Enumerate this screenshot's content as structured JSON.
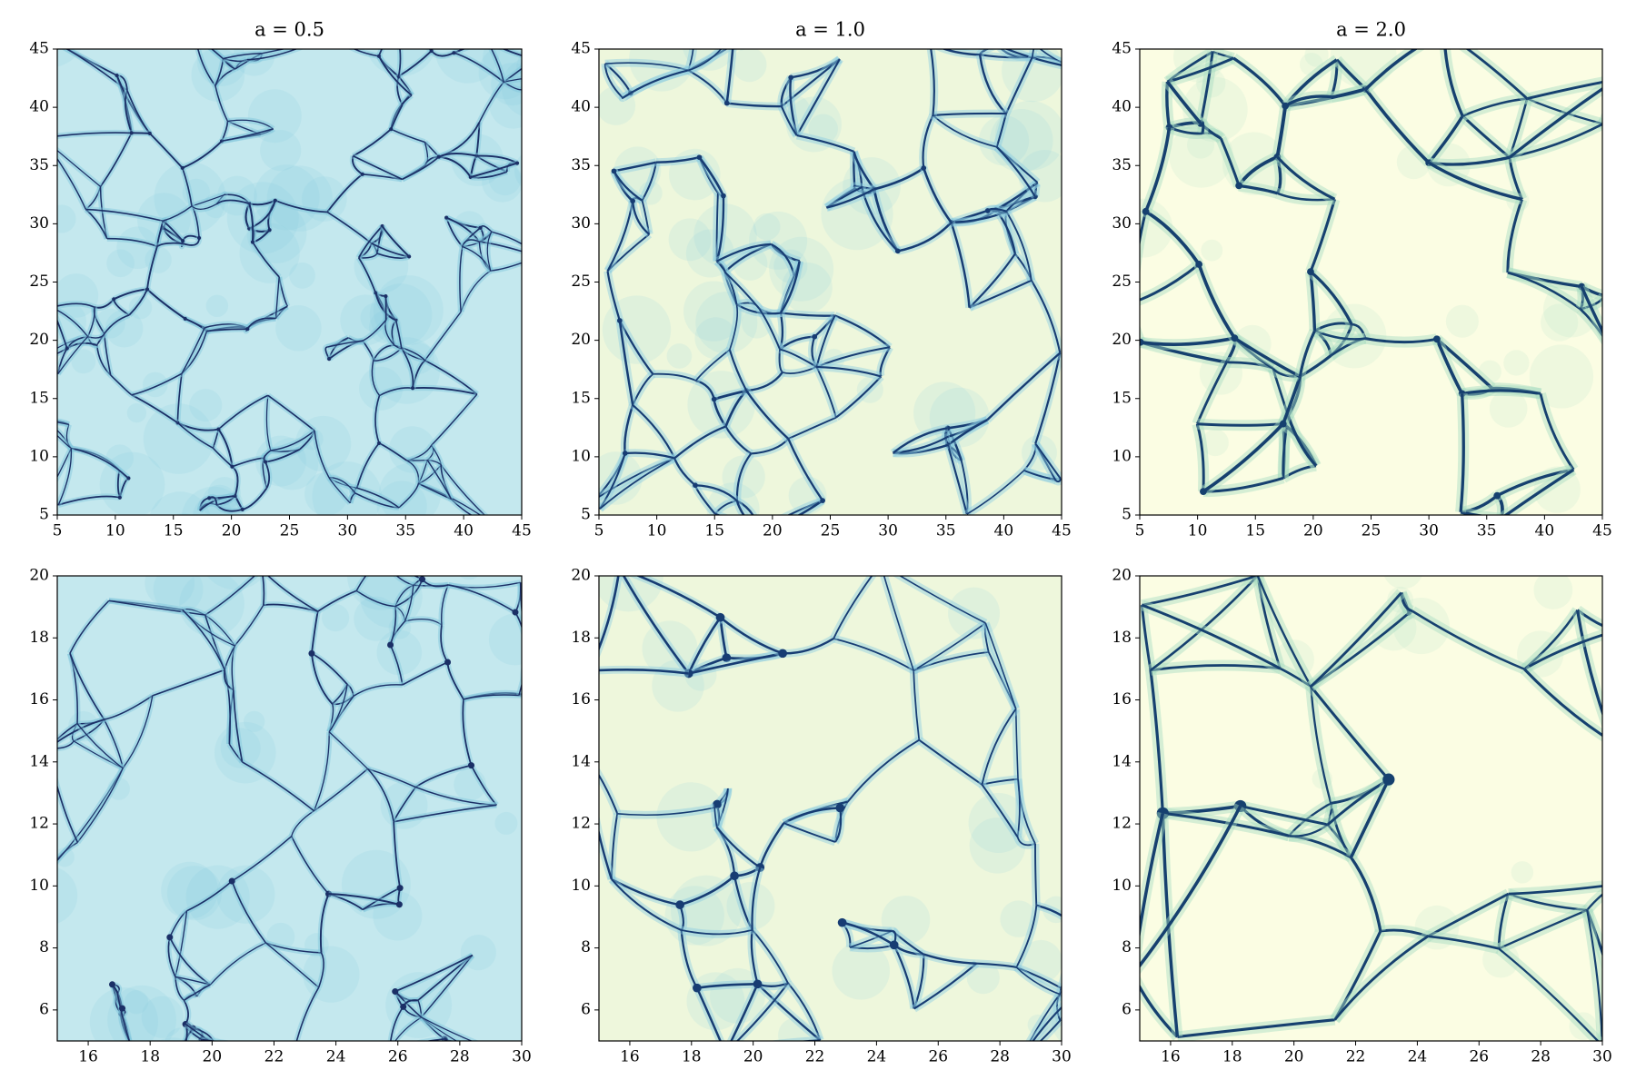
{
  "chart_data": [
    {
      "type": "density",
      "title": "a = 0.5",
      "xlim": [
        5,
        45
      ],
      "ylim": [
        5,
        45
      ],
      "xticks": [
        5,
        10,
        15,
        20,
        25,
        30,
        35,
        40,
        45
      ],
      "yticks": [
        5,
        10,
        15,
        20,
        25,
        30,
        35,
        40,
        45
      ]
    },
    {
      "type": "density",
      "title": "a = 1.0",
      "xlim": [
        5,
        45
      ],
      "ylim": [
        5,
        45
      ],
      "xticks": [
        5,
        10,
        15,
        20,
        25,
        30,
        35,
        40,
        45
      ],
      "yticks": [
        5,
        10,
        15,
        20,
        25,
        30,
        35,
        40,
        45
      ]
    },
    {
      "type": "density",
      "title": "a = 2.0",
      "xlim": [
        5,
        45
      ],
      "ylim": [
        5,
        45
      ],
      "xticks": [
        5,
        10,
        15,
        20,
        25,
        30,
        35,
        40,
        45
      ],
      "yticks": [
        5,
        10,
        15,
        20,
        25,
        30,
        35,
        40,
        45
      ]
    },
    {
      "type": "density",
      "xlim": [
        15,
        30
      ],
      "ylim": [
        5,
        20
      ],
      "xticks": [
        16,
        18,
        20,
        22,
        24,
        26,
        28,
        30
      ],
      "yticks": [
        6,
        8,
        10,
        12,
        14,
        16,
        18,
        20
      ]
    },
    {
      "type": "density",
      "xlim": [
        15,
        30
      ],
      "ylim": [
        5,
        20
      ],
      "xticks": [
        16,
        18,
        20,
        22,
        24,
        26,
        28,
        30
      ],
      "yticks": [
        6,
        8,
        10,
        12,
        14,
        16,
        18,
        20
      ]
    },
    {
      "type": "density",
      "xlim": [
        15,
        30
      ],
      "ylim": [
        5,
        20
      ],
      "xticks": [
        16,
        18,
        20,
        22,
        24,
        26,
        28,
        30
      ],
      "yticks": [
        6,
        8,
        10,
        12,
        14,
        16,
        18,
        20
      ]
    }
  ]
}
